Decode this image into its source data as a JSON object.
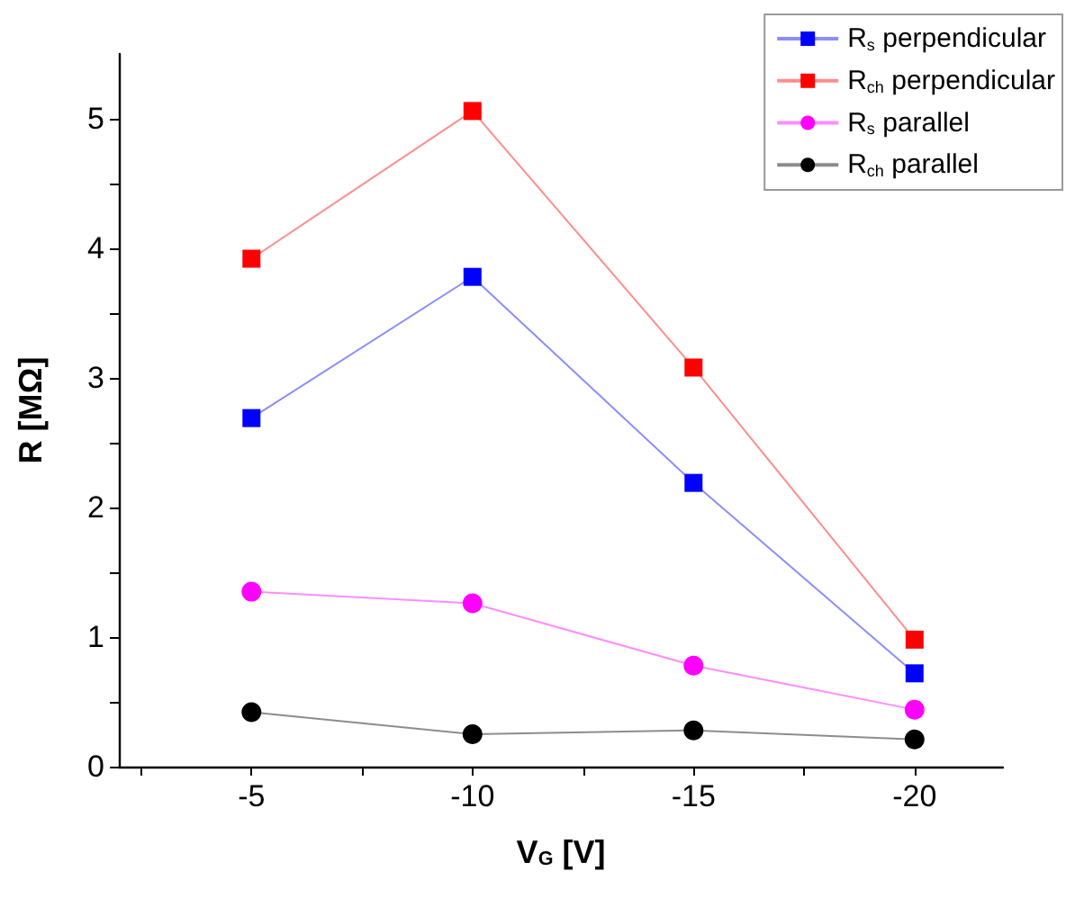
{
  "chart_data": {
    "type": "line",
    "xlabel": "V$_{G}$ [V]",
    "ylabel": "R [MΩ]",
    "x": [
      -5,
      -10,
      -15,
      -20
    ],
    "xlim": [
      -2,
      -22
    ],
    "xticks": [
      {
        "value": -2.5,
        "label": null
      },
      -5,
      {
        "value": -7.5,
        "label": null
      },
      -10,
      {
        "value": -12.5,
        "label": null
      },
      -15,
      {
        "value": -17.5,
        "label": null
      },
      -20
    ],
    "ylim": [
      0,
      5.5
    ],
    "yticks": [
      0,
      {
        "value": 0.5,
        "label": null
      },
      1,
      {
        "value": 1.5,
        "label": null
      },
      2,
      {
        "value": 2.5,
        "label": null
      },
      3,
      {
        "value": 3.5,
        "label": null
      },
      4,
      {
        "value": 4.5,
        "label": null
      },
      5
    ],
    "series": [
      {
        "name": "R$_{s}$ perpendicular",
        "color": "#0000ff",
        "marker": "square",
        "values": [
          2.69,
          3.78,
          2.19,
          0.72
        ]
      },
      {
        "name": "R$_{ch}$ perpendicular",
        "color": "#ff0000",
        "marker": "square",
        "values": [
          3.92,
          5.06,
          3.08,
          0.98
        ]
      },
      {
        "name": "R$_{s}$ parallel",
        "color": "#ff00ff",
        "marker": "circle",
        "values": [
          1.35,
          1.26,
          0.78,
          0.44
        ]
      },
      {
        "name": "R$_{ch}$ parallel",
        "color": "#000000",
        "marker": "circle",
        "values": [
          0.42,
          0.25,
          0.28,
          0.21
        ]
      }
    ],
    "legend": "top right",
    "grid": false,
    "line_style": "solid"
  }
}
